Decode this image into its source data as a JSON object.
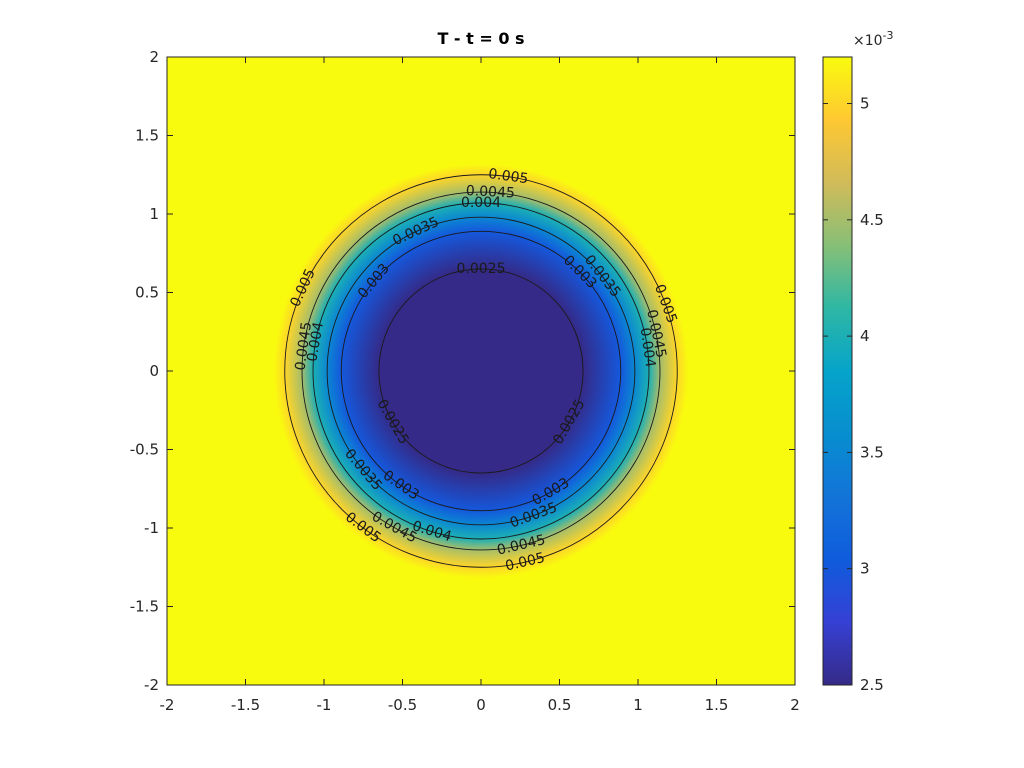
{
  "chart_data": {
    "type": "heatmap",
    "subtype": "filled-contour-with-labeled-isolines",
    "title": "T - t = 0 s",
    "xlabel": "",
    "ylabel": "",
    "xlim": [
      -2,
      2
    ],
    "ylim": [
      -2,
      2
    ],
    "x_ticks": [
      -2,
      -1.5,
      -1,
      -0.5,
      0,
      0.5,
      1,
      1.5,
      2
    ],
    "y_ticks": [
      -2,
      -1.5,
      -1,
      -0.5,
      0,
      0.5,
      1,
      1.5,
      2
    ],
    "x_tick_labels": [
      "-2",
      "-1.5",
      "-1",
      "-0.5",
      "0",
      "0.5",
      "1",
      "1.5",
      "2"
    ],
    "y_tick_labels": [
      "-2",
      "-1.5",
      "-1",
      "-0.5",
      "0",
      "0.5",
      "1",
      "1.5",
      "2"
    ],
    "field": {
      "shape": "radially symmetric",
      "center": [
        0,
        0
      ],
      "min_value": 0.0025,
      "max_value": 0.0052
    },
    "contours": [
      {
        "level": 0.0025,
        "radius": 0.65,
        "label": "0.0025",
        "label_angles_deg": [
          90,
          210,
          330
        ]
      },
      {
        "level": 0.003,
        "radius": 0.89,
        "label": "0.003",
        "label_angles_deg": [
          140,
          45,
          235,
          300
        ]
      },
      {
        "level": 0.0035,
        "radius": 0.98,
        "label": "0.0035",
        "label_angles_deg": [
          115,
          38,
          220,
          290
        ]
      },
      {
        "level": 0.004,
        "radius": 1.07,
        "label": "0.004",
        "label_angles_deg": [
          90,
          170,
          8,
          253
        ]
      },
      {
        "level": 0.0045,
        "radius": 1.14,
        "label": "0.0045",
        "label_angles_deg": [
          87,
          172,
          12,
          241,
          283
        ]
      },
      {
        "level": 0.005,
        "radius": 1.25,
        "label": "0.005",
        "label_angles_deg": [
          82,
          155,
          20,
          233,
          283
        ]
      }
    ],
    "colorbar": {
      "colormap": "parula",
      "range": [
        2.5,
        5.2
      ],
      "ticks": [
        2.5,
        3,
        3.5,
        4,
        4.5,
        5
      ],
      "tick_labels": [
        "2.5",
        "3",
        "3.5",
        "4",
        "4.5",
        "5"
      ],
      "exponent_base": "×10",
      "exponent_power": "-3"
    },
    "grid": false,
    "legend": "none"
  }
}
